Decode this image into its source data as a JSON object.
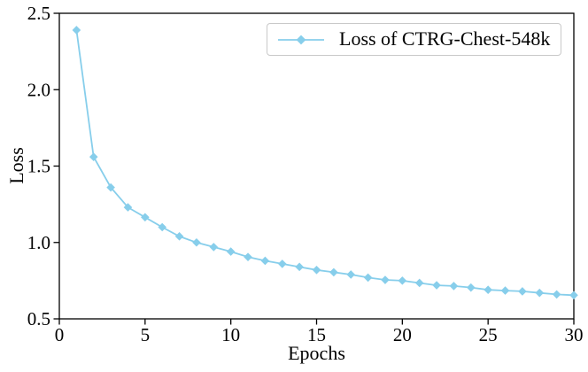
{
  "chart_data": {
    "type": "line",
    "title": "",
    "xlabel": "Epochs",
    "ylabel": "Loss",
    "xlim": [
      0,
      30
    ],
    "ylim": [
      0.5,
      2.5
    ],
    "grid": false,
    "axis_color": "#000000",
    "xticks": {
      "values": [
        0,
        5,
        10,
        15,
        20,
        25,
        30
      ],
      "labels": [
        "0",
        "5",
        "10",
        "15",
        "20",
        "25",
        "30"
      ]
    },
    "yticks": {
      "values": [
        0.5,
        1.0,
        1.5,
        2.0,
        2.5
      ],
      "labels": [
        "0.5",
        "1.0",
        "1.5",
        "2.0",
        "2.5"
      ]
    },
    "legend": {
      "position": "upper right",
      "entries": [
        {
          "label": "Loss of CTRG-Chest-548k",
          "color": "#87CEEB",
          "marker": "diamond"
        }
      ]
    },
    "series": [
      {
        "name": "Loss of CTRG-Chest-548k",
        "color": "#87CEEB",
        "marker": "diamond",
        "x": [
          1,
          2,
          3,
          4,
          5,
          6,
          7,
          8,
          9,
          10,
          11,
          12,
          13,
          14,
          15,
          16,
          17,
          18,
          19,
          20,
          21,
          22,
          23,
          24,
          25,
          26,
          27,
          28,
          29,
          30
        ],
        "y": [
          2.39,
          1.56,
          1.36,
          1.23,
          1.165,
          1.1,
          1.04,
          1.0,
          0.97,
          0.94,
          0.905,
          0.88,
          0.86,
          0.84,
          0.82,
          0.805,
          0.79,
          0.77,
          0.755,
          0.75,
          0.735,
          0.72,
          0.715,
          0.705,
          0.69,
          0.685,
          0.68,
          0.67,
          0.66,
          0.655
        ]
      }
    ]
  }
}
